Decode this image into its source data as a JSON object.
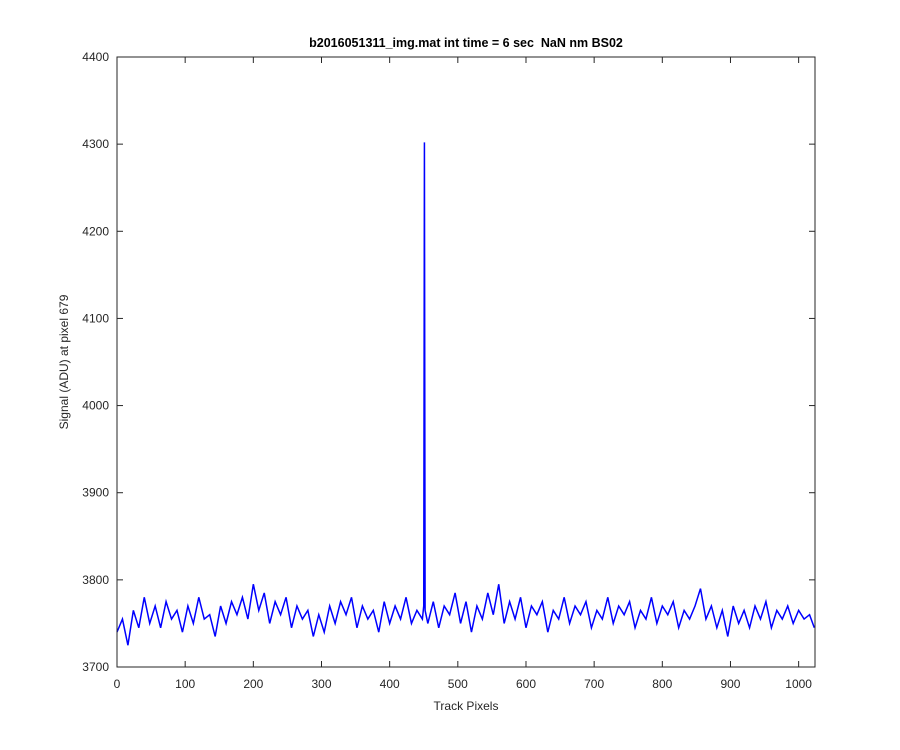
{
  "chart_data": {
    "type": "line",
    "title": "b2016051311_img.mat int time = 6 sec  NaN nm BS02",
    "x_label": "Track Pixels",
    "y_label": "Signal (ADU) at pixel 679",
    "xlim": [
      0,
      1024
    ],
    "ylim": [
      3700,
      4400
    ],
    "xticks": [
      0,
      100,
      200,
      300,
      400,
      500,
      600,
      700,
      800,
      900,
      1000
    ],
    "yticks": [
      3700,
      3800,
      3900,
      4000,
      4100,
      4200,
      4300,
      4400
    ],
    "series": [
      {
        "color": "#0000ff",
        "x": [
          0,
          8,
          16,
          24,
          32,
          40,
          48,
          56,
          64,
          72,
          80,
          88,
          96,
          104,
          112,
          120,
          128,
          136,
          144,
          152,
          160,
          168,
          176,
          184,
          192,
          200,
          208,
          216,
          224,
          232,
          240,
          248,
          256,
          264,
          272,
          280,
          288,
          296,
          304,
          312,
          320,
          328,
          336,
          344,
          352,
          360,
          368,
          376,
          384,
          392,
          400,
          408,
          416,
          424,
          432,
          440,
          448,
          450,
          451,
          452,
          456,
          464,
          472,
          480,
          488,
          496,
          504,
          512,
          520,
          528,
          536,
          544,
          552,
          560,
          568,
          576,
          584,
          592,
          600,
          608,
          616,
          624,
          632,
          640,
          648,
          656,
          664,
          672,
          680,
          688,
          696,
          704,
          712,
          720,
          728,
          736,
          744,
          752,
          760,
          768,
          776,
          784,
          792,
          800,
          808,
          816,
          824,
          832,
          840,
          848,
          856,
          864,
          872,
          880,
          888,
          896,
          904,
          912,
          920,
          928,
          936,
          944,
          952,
          960,
          968,
          976,
          984,
          992,
          1000,
          1008,
          1016,
          1023
        ],
        "values": [
          3740,
          3755,
          3725,
          3765,
          3745,
          3780,
          3750,
          3770,
          3745,
          3775,
          3755,
          3765,
          3740,
          3770,
          3750,
          3780,
          3755,
          3760,
          3735,
          3770,
          3750,
          3775,
          3760,
          3780,
          3755,
          3795,
          3765,
          3785,
          3750,
          3775,
          3760,
          3780,
          3745,
          3770,
          3755,
          3765,
          3735,
          3760,
          3740,
          3770,
          3750,
          3775,
          3760,
          3780,
          3745,
          3770,
          3755,
          3765,
          3740,
          3775,
          3750,
          3770,
          3755,
          3780,
          3750,
          3765,
          3755,
          3770,
          4302,
          3765,
          3750,
          3775,
          3745,
          3770,
          3760,
          3785,
          3750,
          3775,
          3740,
          3770,
          3755,
          3785,
          3760,
          3795,
          3750,
          3775,
          3755,
          3780,
          3745,
          3770,
          3760,
          3775,
          3740,
          3765,
          3755,
          3780,
          3750,
          3770,
          3760,
          3775,
          3745,
          3765,
          3755,
          3780,
          3750,
          3770,
          3760,
          3775,
          3745,
          3765,
          3755,
          3780,
          3750,
          3770,
          3760,
          3775,
          3745,
          3765,
          3755,
          3770,
          3790,
          3755,
          3770,
          3745,
          3765,
          3735,
          3770,
          3750,
          3765,
          3745,
          3770,
          3755,
          3775,
          3745,
          3765,
          3755,
          3770,
          3750,
          3765,
          3755,
          3760,
          3745
        ]
      }
    ]
  }
}
